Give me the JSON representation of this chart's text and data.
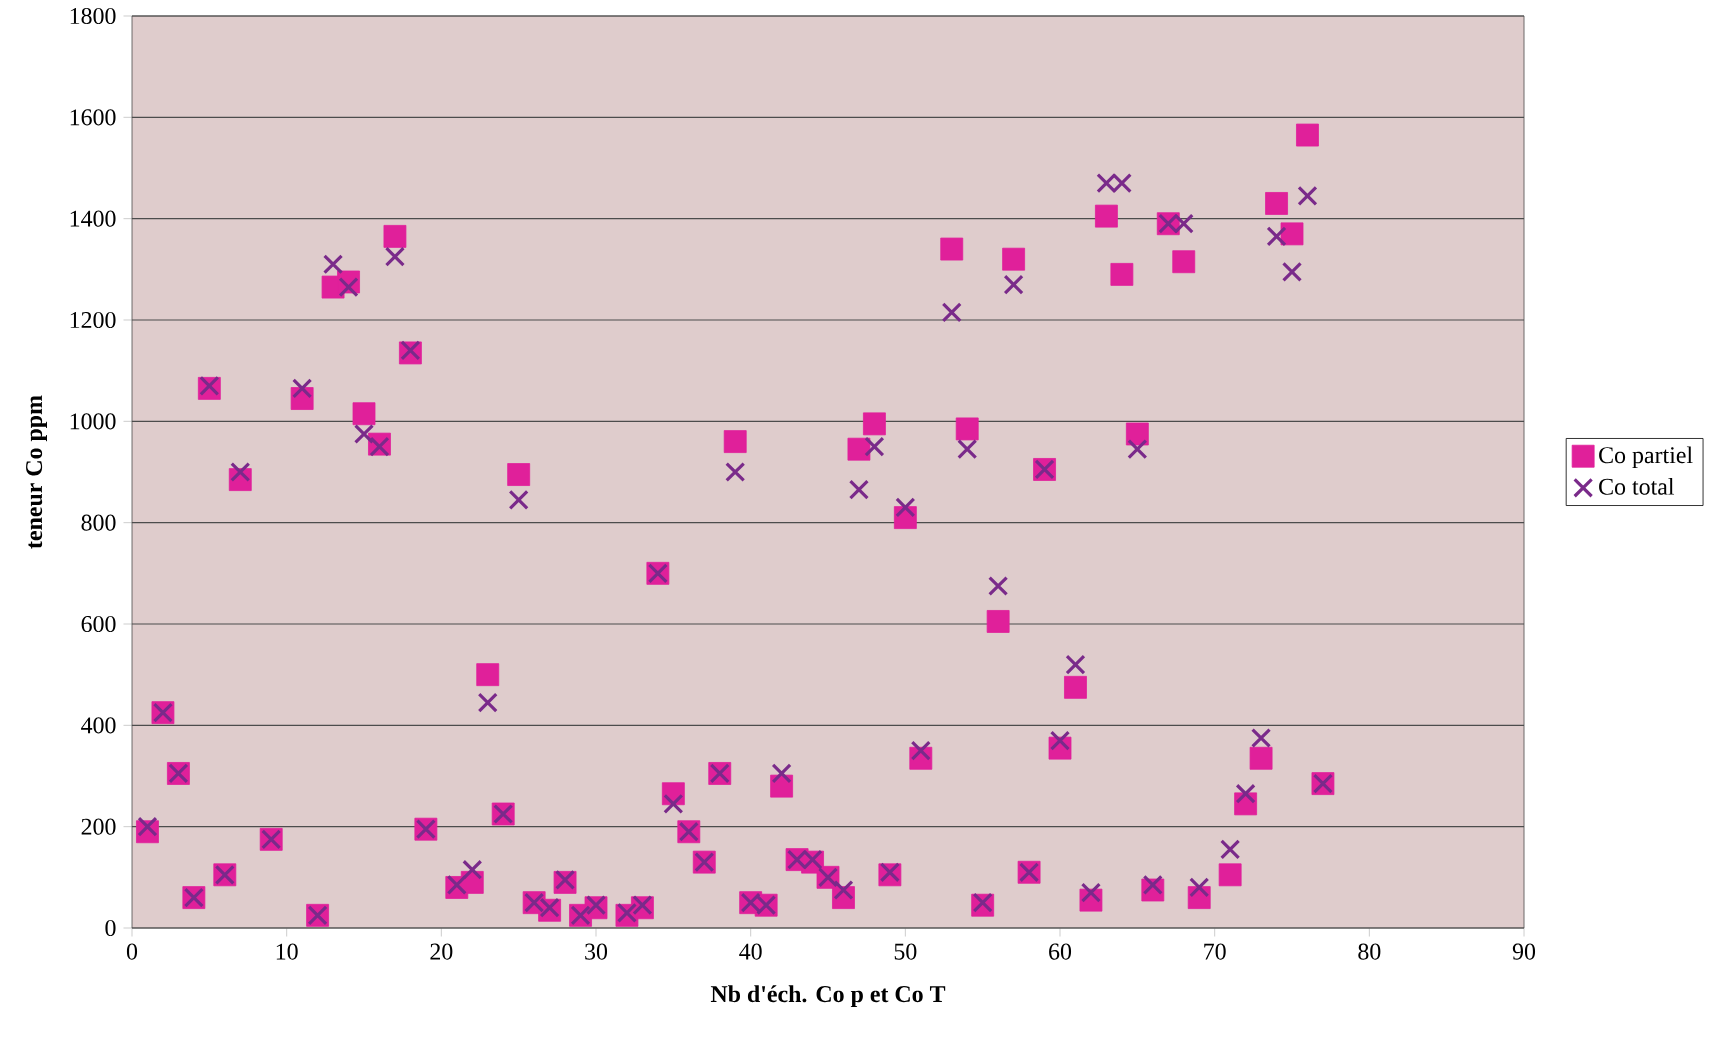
{
  "chart_data": {
    "type": "scatter",
    "xlabel": "Nb d'éch. Co p et Co T",
    "ylabel": "teneur Co ppm",
    "xlim": [
      0,
      90
    ],
    "xticks": [
      0,
      10,
      20,
      30,
      40,
      50,
      60,
      70,
      80,
      90
    ],
    "ylim": [
      0,
      1800
    ],
    "yticks": [
      0,
      200,
      400,
      600,
      800,
      1000,
      1200,
      1400,
      1600,
      1800
    ],
    "grid": "y",
    "legend": "right",
    "x": [
      1,
      2,
      3,
      4,
      5,
      6,
      7,
      9,
      11,
      12,
      13,
      14,
      15,
      16,
      17,
      18,
      19,
      21,
      22,
      23,
      24,
      25,
      26,
      27,
      28,
      29,
      30,
      32,
      33,
      34,
      35,
      36,
      37,
      38,
      39,
      40,
      41,
      42,
      43,
      44,
      45,
      46,
      47,
      48,
      49,
      50,
      51,
      53,
      54,
      55,
      56,
      57,
      58,
      59,
      60,
      61,
      62,
      63,
      64,
      65,
      66,
      67,
      68,
      69,
      71,
      72,
      73,
      74,
      75,
      76,
      77
    ],
    "series": [
      {
        "name": "Co partiel",
        "color": "#e0209a",
        "marker": "square",
        "values": [
          190,
          425,
          305,
          60,
          1065,
          105,
          885,
          175,
          1045,
          25,
          1265,
          1275,
          1015,
          955,
          1365,
          1135,
          195,
          80,
          90,
          500,
          225,
          895,
          50,
          35,
          90,
          25,
          40,
          25,
          40,
          700,
          265,
          190,
          130,
          305,
          960,
          50,
          45,
          280,
          135,
          130,
          100,
          60,
          945,
          995,
          105,
          810,
          335,
          1340,
          985,
          45,
          605,
          1320,
          110,
          905,
          355,
          475,
          55,
          1405,
          1290,
          975,
          75,
          1390,
          1315,
          60,
          105,
          245,
          335,
          1430,
          1370,
          1565,
          285
        ]
      },
      {
        "name": "Co total",
        "color": "#7a2a8a",
        "marker": "cross",
        "values": [
          200,
          425,
          305,
          60,
          1070,
          105,
          900,
          175,
          1065,
          25,
          1310,
          1265,
          975,
          950,
          1325,
          1140,
          195,
          85,
          115,
          445,
          225,
          845,
          50,
          40,
          95,
          25,
          45,
          30,
          45,
          700,
          245,
          190,
          130,
          305,
          900,
          50,
          45,
          305,
          135,
          135,
          100,
          75,
          865,
          950,
          110,
          830,
          350,
          1215,
          945,
          50,
          675,
          1270,
          110,
          905,
          370,
          520,
          70,
          1470,
          1470,
          945,
          85,
          1390,
          1390,
          80,
          155,
          265,
          375,
          1365,
          1295,
          1445,
          285
        ]
      }
    ]
  }
}
